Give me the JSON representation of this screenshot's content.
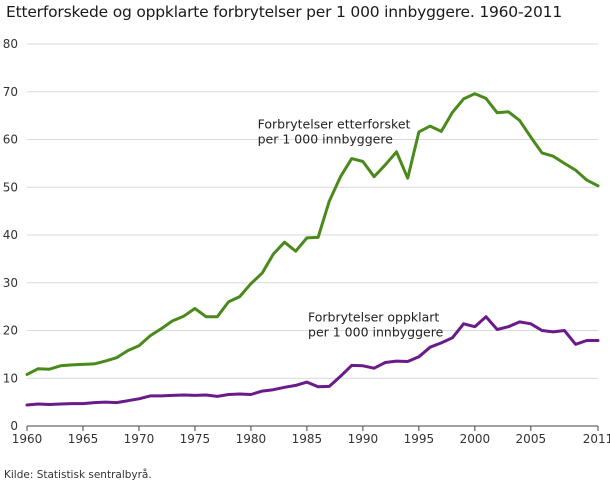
{
  "title": "Etterforskede og oppklarte forbrytelser per 1 000 innbyggere. 1960-2011",
  "source": "Kilde: Statistisk sentralbyrå.",
  "chart_data": {
    "type": "line",
    "title": "Etterforskede og oppklarte forbrytelser per 1 000 innbyggere. 1960-2011",
    "xlabel": "",
    "ylabel": "",
    "xlim": [
      1960,
      2011
    ],
    "ylim": [
      0,
      80
    ],
    "x_ticks": [
      "1960",
      "1965",
      "1970",
      "1975",
      "1980",
      "1985",
      "1990",
      "1995",
      "2000",
      "2005",
      "2011"
    ],
    "y_ticks": [
      "0",
      "10",
      "20",
      "30",
      "40",
      "50",
      "60",
      "70",
      "80"
    ],
    "grid": true,
    "x": [
      1960,
      1961,
      1962,
      1963,
      1964,
      1965,
      1966,
      1967,
      1968,
      1969,
      1970,
      1971,
      1972,
      1973,
      1974,
      1975,
      1976,
      1977,
      1978,
      1979,
      1980,
      1981,
      1982,
      1983,
      1984,
      1985,
      1986,
      1987,
      1988,
      1989,
      1990,
      1991,
      1992,
      1993,
      1994,
      1995,
      1996,
      1997,
      1998,
      1999,
      2000,
      2001,
      2002,
      2003,
      2004,
      2005,
      2006,
      2007,
      2008,
      2009,
      2010,
      2011
    ],
    "series": [
      {
        "color": "#4a8a1c",
        "label_lines": [
          "Forbrytelser etterforsket",
          "per 1 000 innbyggere"
        ],
        "values": [
          10.8,
          12,
          11.9,
          12.6,
          12.8,
          12.9,
          13,
          13.6,
          14.3,
          15.8,
          16.8,
          18.9,
          20.4,
          22,
          23,
          24.6,
          22.9,
          22.9,
          26,
          27.1,
          29.8,
          32,
          36,
          38.5,
          36.6,
          39.4,
          39.5,
          47.1,
          52.2,
          56,
          55.4,
          52.2,
          54.7,
          57.4,
          51.9,
          61.6,
          62.8,
          61.7,
          65.7,
          68.5,
          69.6,
          68.6,
          65.6,
          65.8,
          64,
          60.5,
          57.2,
          56.5,
          55,
          53.6,
          51.5,
          50.3
        ]
      },
      {
        "color": "#6b1a8a",
        "label_lines": [
          "Forbrytelser oppklart",
          "per 1 000 innbyggere"
        ],
        "values": [
          4.4,
          4.6,
          4.5,
          4.6,
          4.7,
          4.7,
          4.9,
          5,
          4.9,
          5.3,
          5.7,
          6.3,
          6.3,
          6.4,
          6.5,
          6.4,
          6.5,
          6.2,
          6.6,
          6.7,
          6.6,
          7.3,
          7.6,
          8.1,
          8.5,
          9.2,
          8.2,
          8.3,
          10.4,
          12.7,
          12.6,
          12.1,
          13.3,
          13.6,
          13.5,
          14.5,
          16.5,
          17.4,
          18.5,
          21.4,
          20.8,
          22.9,
          20.2,
          20.8,
          21.8,
          21.4,
          20,
          19.7,
          20,
          17.1,
          17.9,
          17.9
        ]
      }
    ]
  }
}
